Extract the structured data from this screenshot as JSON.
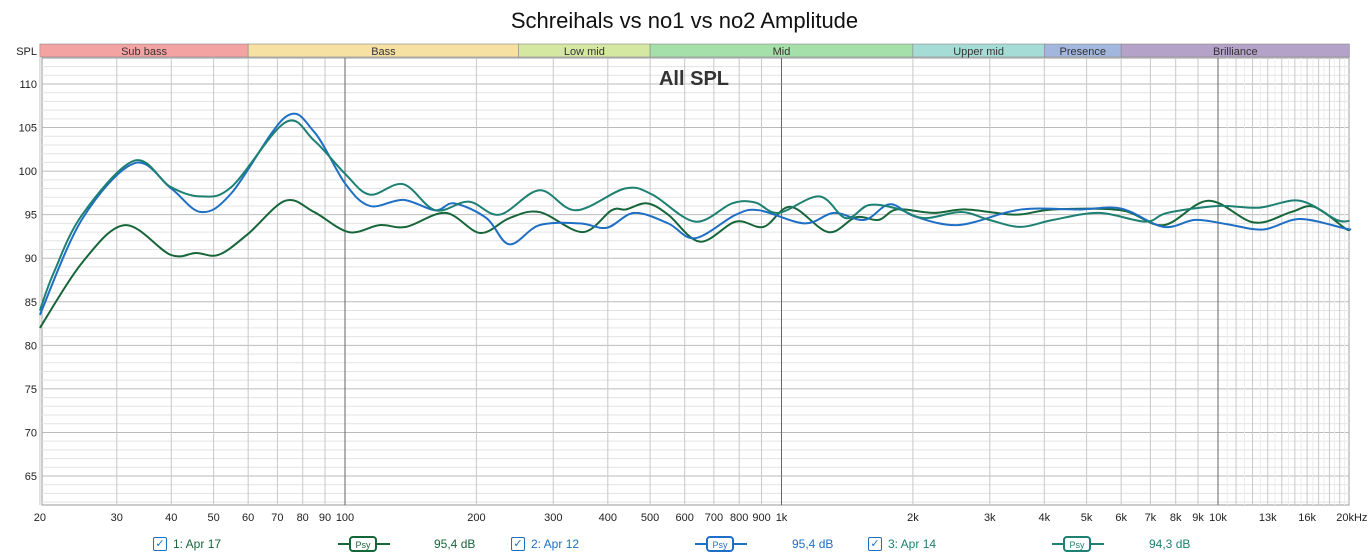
{
  "chart_data": {
    "type": "line",
    "title": "Schreihals vs no1 vs no2 Amplitude",
    "overlay_label": "All SPL",
    "ylabel": "SPL",
    "xlabel": "",
    "x_unit": "kHz",
    "xscale": "log",
    "xlim": [
      20,
      20000
    ],
    "ylim": [
      61.7,
      113
    ],
    "grid": true,
    "yticks": [
      65,
      70,
      75,
      80,
      85,
      90,
      95,
      100,
      105,
      110
    ],
    "ytick_labels": [
      "65",
      "70",
      "75",
      "80",
      "85",
      "90",
      "95",
      "100",
      "105",
      "110"
    ],
    "xticks": [
      20,
      30,
      40,
      50,
      60,
      70,
      80,
      90,
      100,
      200,
      300,
      400,
      500,
      600,
      700,
      800,
      900,
      1000,
      2000,
      3000,
      4000,
      5000,
      6000,
      7000,
      8000,
      9000,
      10000,
      13000,
      16000,
      20000
    ],
    "xtick_labels": [
      "20",
      "30",
      "40",
      "50",
      "60",
      "70",
      "80",
      "90",
      "100",
      "200",
      "300",
      "400",
      "500",
      "600",
      "700",
      "800",
      "900",
      "1k",
      "2k",
      "3k",
      "4k",
      "5k",
      "6k",
      "7k",
      "8k",
      "9k",
      "10k",
      "13k",
      "16k",
      "20kHz"
    ],
    "bands": [
      {
        "name": "Sub bass",
        "from": 20,
        "to": 60,
        "color": "#f4a3a3"
      },
      {
        "name": "Bass",
        "from": 60,
        "to": 250,
        "color": "#f6e0a2"
      },
      {
        "name": "Low mid",
        "from": 250,
        "to": 500,
        "color": "#d4e8a2"
      },
      {
        "name": "Mid",
        "from": 500,
        "to": 2000,
        "color": "#a5e0aa"
      },
      {
        "name": "Upper mid",
        "from": 2000,
        "to": 4000,
        "color": "#a5ddd6"
      },
      {
        "name": "Presence",
        "from": 4000,
        "to": 6000,
        "color": "#a2b6de"
      },
      {
        "name": "Brilliance",
        "from": 6000,
        "to": 20000,
        "color": "#b5a2c9"
      }
    ],
    "series": [
      {
        "name": "1: Apr 17",
        "color": "#17663a",
        "smoothing": "Psy",
        "level": "95,4 dB",
        "x": [
          20,
          25,
          31.3,
          39.8,
          45.6,
          51.4,
          60,
          73,
          85,
          102,
          120,
          138,
          170,
          204,
          238,
          279,
          350,
          408,
          440,
          492,
          550,
          650,
          786,
          910,
          1050,
          1280,
          1480,
          1670,
          1840,
          2230,
          2650,
          3440,
          4190,
          6000,
          7500,
          9500,
          12100,
          14700,
          16600,
          19600,
          20000
        ],
        "y": [
          82.0,
          89.5,
          93.8,
          90.4,
          90.6,
          90.4,
          92.8,
          96.6,
          95.3,
          93.0,
          93.8,
          93.6,
          95.2,
          92.9,
          94.6,
          95.3,
          93.0,
          95.5,
          95.6,
          96.3,
          95.0,
          91.9,
          94.2,
          93.6,
          95.9,
          93.0,
          94.7,
          94.4,
          95.6,
          95.2,
          95.6,
          95.0,
          95.6,
          95.5,
          93.8,
          96.6,
          94.1,
          95.3,
          95.9,
          93.4,
          93.4
        ]
      },
      {
        "name": "2: Apr 12",
        "color": "#1f6fc4",
        "smoothing": "Psy",
        "level": "95,4 dB",
        "x": [
          20,
          25,
          32.9,
          40,
          46.8,
          55,
          73,
          85,
          100,
          114,
          136,
          161,
          178,
          211,
          238,
          279,
          345,
          398,
          460,
          550,
          634,
          786,
          890,
          1130,
          1320,
          1550,
          1770,
          2020,
          2530,
          3300,
          3800,
          4830,
          6000,
          7500,
          8870,
          10500,
          12700,
          15400,
          19600,
          20000
        ],
        "y": [
          83.5,
          94.5,
          100.9,
          98.0,
          95.3,
          97.5,
          106.2,
          104.5,
          98.6,
          96.0,
          96.7,
          95.5,
          96.3,
          94.6,
          91.6,
          93.8,
          94.0,
          93.5,
          95.2,
          94.0,
          92.3,
          95.0,
          95.5,
          94.0,
          95.2,
          94.4,
          96.2,
          94.8,
          93.8,
          95.3,
          95.7,
          95.6,
          95.7,
          93.6,
          94.4,
          93.9,
          93.3,
          94.5,
          93.4,
          93.4
        ]
      },
      {
        "name": "3: Apr 14",
        "color": "#1d8072",
        "smoothing": "Psy",
        "level": "94,3 dB",
        "x": [
          20,
          21.5,
          25,
          32.9,
          39.8,
          46.8,
          55,
          73,
          85,
          100,
          114,
          136,
          161,
          192,
          226,
          279,
          338,
          438,
          506,
          634,
          771,
          871,
          984,
          1220,
          1405,
          1585,
          1840,
          2120,
          2580,
          2990,
          3530,
          4190,
          5340,
          6820,
          7650,
          10000,
          12400,
          15400,
          18700,
          20000
        ],
        "y": [
          84.0,
          88.3,
          95.0,
          101.2,
          98.2,
          97.1,
          98.2,
          105.6,
          103.5,
          99.7,
          97.3,
          98.5,
          95.5,
          96.5,
          95.0,
          97.8,
          95.5,
          98.0,
          97.3,
          94.2,
          96.3,
          96.4,
          95.2,
          97.1,
          94.6,
          96.1,
          95.7,
          94.6,
          95.3,
          94.4,
          93.6,
          94.4,
          95.2,
          94.2,
          95.2,
          96.0,
          95.8,
          96.6,
          94.4,
          94.3
        ]
      }
    ]
  },
  "legend": [
    {
      "label": "1: Apr 17",
      "check": "✓",
      "badge": "Psy",
      "value": "95,4 dB"
    },
    {
      "label": "2: Apr 12",
      "check": "✓",
      "badge": "Psy",
      "value": "95,4 dB"
    },
    {
      "label": "3: Apr 14",
      "check": "✓",
      "badge": "Psy",
      "value": "94,3 dB"
    }
  ]
}
